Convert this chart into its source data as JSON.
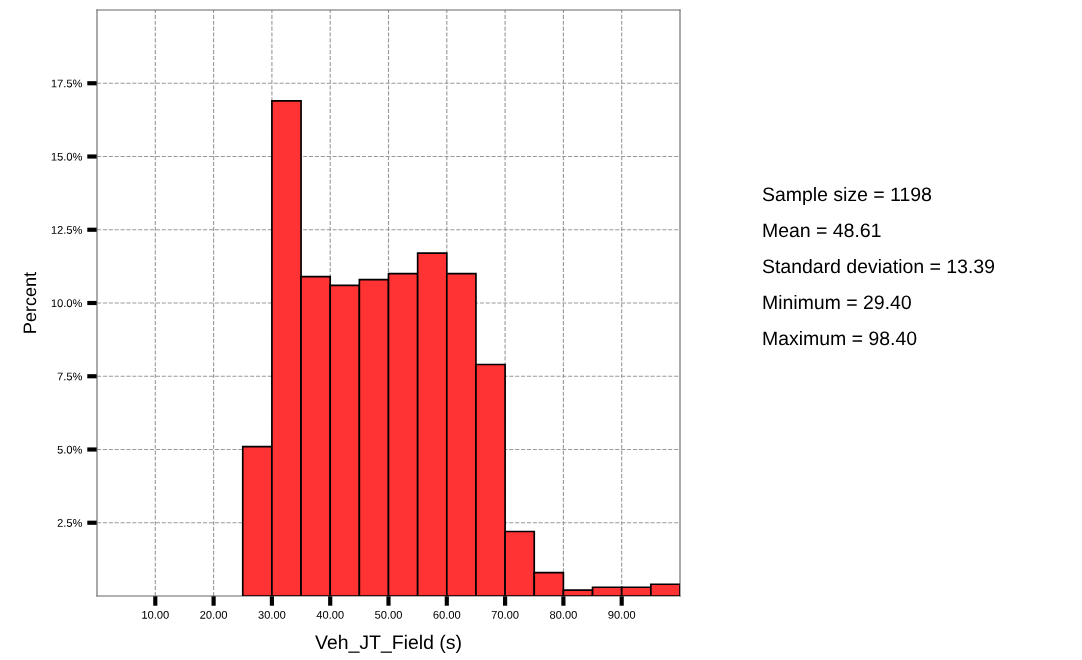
{
  "chart_data": {
    "type": "histogram",
    "xlabel": "Veh_JT_Field (s)",
    "ylabel": "Percent",
    "bins": [
      25,
      30,
      35,
      40,
      45,
      50,
      55,
      60,
      65,
      70,
      75,
      80,
      85,
      90,
      95,
      100
    ],
    "values": [
      5.1,
      16.9,
      10.9,
      10.6,
      10.8,
      11.0,
      11.7,
      11.0,
      7.9,
      2.2,
      0.8,
      0.2,
      0.3,
      0.3,
      0.4
    ],
    "color": "#ff3333",
    "xlim": [
      0,
      100
    ],
    "xticks": [
      {
        "value": 10,
        "label": "10.00"
      },
      {
        "value": 20,
        "label": "20.00"
      },
      {
        "value": 30,
        "label": "30.00"
      },
      {
        "value": 40,
        "label": "40.00"
      },
      {
        "value": 50,
        "label": "50.00"
      },
      {
        "value": 60,
        "label": "60.00"
      },
      {
        "value": 70,
        "label": "70.00"
      },
      {
        "value": 80,
        "label": "80.00"
      },
      {
        "value": 90,
        "label": "90.00"
      }
    ],
    "ylim": [
      0,
      20
    ],
    "yticks": [
      {
        "value": 2.5,
        "label": "2.5%"
      },
      {
        "value": 5,
        "label": "5.0%"
      },
      {
        "value": 7.5,
        "label": "7.5%"
      },
      {
        "value": 10,
        "label": "10.0%"
      },
      {
        "value": 12.5,
        "label": "12.5%"
      },
      {
        "value": 15,
        "label": "15.0%"
      },
      {
        "value": 17.5,
        "label": "17.5%"
      }
    ],
    "grid": true,
    "annotations": [
      "Sample size = 1198",
      "Mean = 48.61",
      "Standard deviation = 13.39",
      "Minimum = 29.40",
      "Maximum = 98.40"
    ]
  }
}
